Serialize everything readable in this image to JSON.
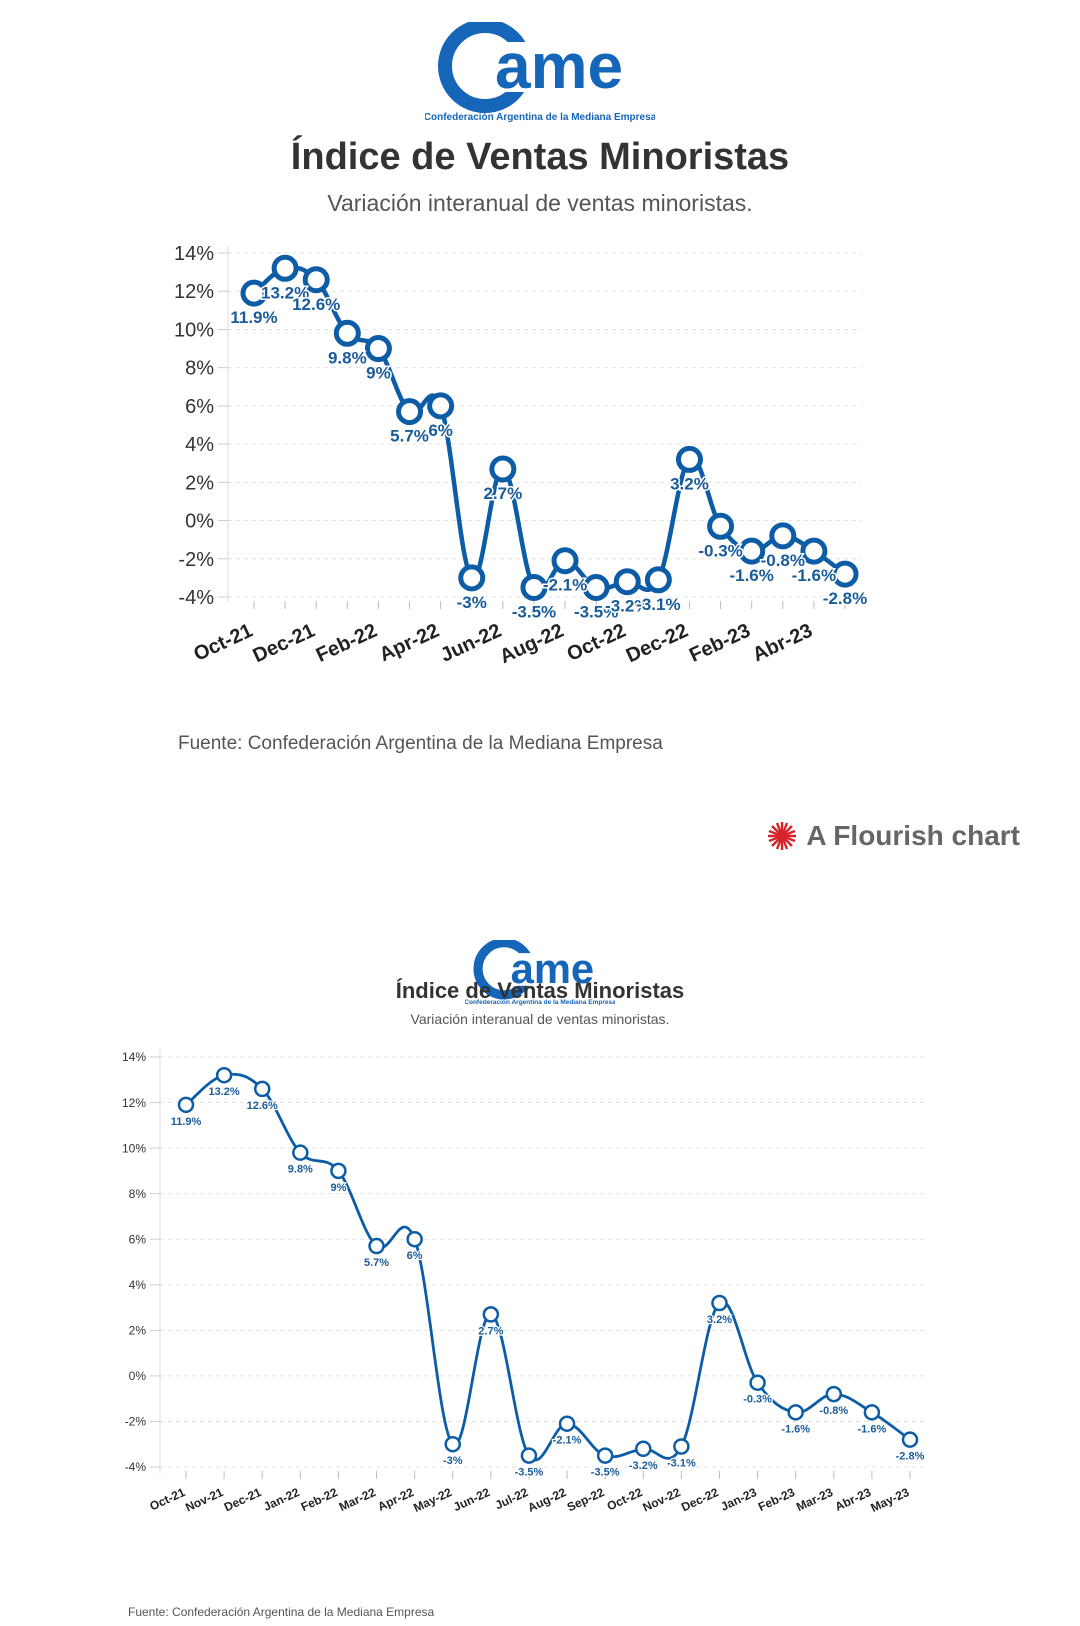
{
  "logo": {
    "wordmark": "ame",
    "caption": "Confederación Argentina de la Mediana Empresa",
    "color": "#1565b8"
  },
  "top_panel": {
    "title": "Índice de Ventas Minoristas",
    "subtitle": "Variación interanual de ventas minoristas.",
    "source": "Fuente: Confederación Argentina de la Mediana Empresa",
    "credit": "A Flourish chart",
    "credit_icon": "flourish-burst-icon"
  },
  "bottom_panel": {
    "title": "Índice de Ventas Minoristas",
    "subtitle": "Variación interanual de ventas minoristas.",
    "source": "Fuente: Confederación Argentina de la Mediana Empresa"
  },
  "colors": {
    "series": "#0d5ca6",
    "label": "#1a5c99",
    "grid": "#e2e2e2",
    "accent": "#d6232a"
  },
  "chart_data": [
    {
      "type": "line",
      "title": "Índice de Ventas Minoristas",
      "subtitle": "Variación interanual de ventas minoristas.",
      "categories": [
        "Oct-21",
        "Nov-21",
        "Dec-21",
        "Jan-22",
        "Feb-22",
        "Mar-22",
        "Apr-22",
        "May-22",
        "Jun-22",
        "Jul-22",
        "Aug-22",
        "Sep-22",
        "Oct-22",
        "Nov-22",
        "Dec-22",
        "Jan-23",
        "Feb-23",
        "Mar-23",
        "Abr-23",
        "May-23"
      ],
      "tick_labels": [
        "Oct-21",
        "",
        "Dec-21",
        "",
        "Feb-22",
        "",
        "Apr-22",
        "",
        "Jun-22",
        "",
        "Aug-22",
        "",
        "Oct-22",
        "",
        "Dec-22",
        "",
        "Feb-23",
        "",
        "Abr-23",
        ""
      ],
      "values": [
        11.9,
        13.2,
        12.6,
        9.8,
        9,
        5.7,
        6,
        -3,
        2.7,
        -3.5,
        -2.1,
        -3.5,
        -3.2,
        -3.1,
        3.2,
        -0.3,
        -1.6,
        -0.8,
        -1.6,
        -2.8
      ],
      "data_labels": [
        "11.9%",
        "13.2%",
        "12.6%",
        "9.8%",
        "9%",
        "5.7%",
        "6%",
        "-3%",
        "2.7%",
        "-3.5%",
        "-2.1%",
        "-3.5%",
        "-3.2%",
        "-3.1%",
        "3.2%",
        "-0.3%",
        "-1.6%",
        "-0.8%",
        "-1.6%",
        "-2.8%"
      ],
      "ylim": [
        -4,
        14
      ],
      "yticks": [
        "-4%",
        "-2%",
        "0%",
        "2%",
        "4%",
        "6%",
        "8%",
        "10%",
        "12%",
        "14%"
      ],
      "xlabel": "",
      "ylabel": "",
      "grid": true,
      "legend": "none",
      "source": "Fuente: Confederación Argentina de la Mediana Empresa"
    },
    {
      "type": "line",
      "title": "Índice de Ventas Minoristas",
      "subtitle": "Variación interanual de ventas minoristas.",
      "categories": [
        "Oct-21",
        "Nov-21",
        "Dec-21",
        "Jan-22",
        "Feb-22",
        "Mar-22",
        "Apr-22",
        "May-22",
        "Jun-22",
        "Jul-22",
        "Aug-22",
        "Sep-22",
        "Oct-22",
        "Nov-22",
        "Dec-22",
        "Jan-23",
        "Feb-23",
        "Mar-23",
        "Abr-23",
        "May-23"
      ],
      "tick_labels": [
        "Oct-21",
        "Nov-21",
        "Dec-21",
        "Jan-22",
        "Feb-22",
        "Mar-22",
        "Apr-22",
        "May-22",
        "Jun-22",
        "Jul-22",
        "Aug-22",
        "Sep-22",
        "Oct-22",
        "Nov-22",
        "Dec-22",
        "Jan-23",
        "Feb-23",
        "Mar-23",
        "Abr-23",
        "May-23"
      ],
      "values": [
        11.9,
        13.2,
        12.6,
        9.8,
        9,
        5.7,
        6,
        -3,
        2.7,
        -3.5,
        -2.1,
        -3.5,
        -3.2,
        -3.1,
        3.2,
        -0.3,
        -1.6,
        -0.8,
        -1.6,
        -2.8
      ],
      "data_labels": [
        "11.9%",
        "13.2%",
        "12.6%",
        "9.8%",
        "9%",
        "5.7%",
        "6%",
        "-3%",
        "2.7%",
        "-3.5%",
        "-2.1%",
        "-3.5%",
        "-3.2%",
        "-3.1%",
        "3.2%",
        "-0.3%",
        "-1.6%",
        "-0.8%",
        "-1.6%",
        "-2.8%"
      ],
      "ylim": [
        -4,
        14
      ],
      "yticks": [
        "-4%",
        "-2%",
        "0%",
        "2%",
        "4%",
        "6%",
        "8%",
        "10%",
        "12%",
        "14%"
      ],
      "xlabel": "",
      "ylabel": "",
      "grid": true,
      "legend": "none",
      "source": "Fuente: Confederación Argentina de la Mediana Empresa"
    }
  ]
}
